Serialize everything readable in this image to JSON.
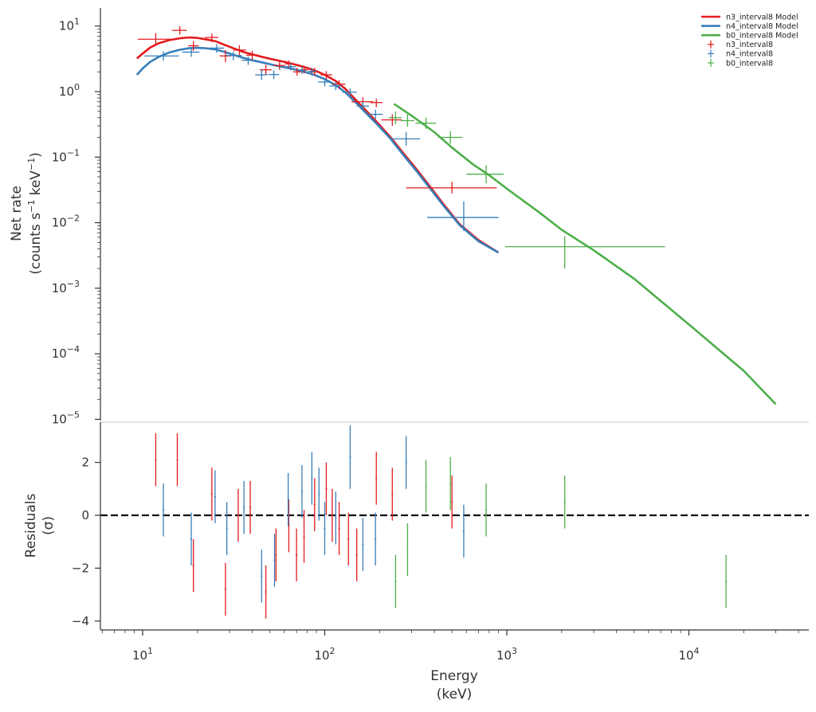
{
  "chart_data": [
    {
      "type": "line",
      "panel": "spectrum",
      "x_scale": "log",
      "y_scale": "log",
      "xlim": [
        6,
        45000
      ],
      "ylim": [
        1e-05,
        15
      ],
      "ylabel": [
        "Net rate",
        "(counts s$^{-1}$ keV$^{-1}$)"
      ],
      "ylabel_parts": {
        "line1": "Net rate",
        "line2_pre": "(counts s",
        "sup1": "−1",
        "line2_mid": " keV",
        "sup2": "−1",
        "line2_post": ")"
      },
      "y_ticks": [
        {
          "base": "10",
          "exp": "1",
          "value": 10
        },
        {
          "base": "10",
          "exp": "0",
          "value": 1
        },
        {
          "base": "10",
          "exp": "−1",
          "value": 0.1
        },
        {
          "base": "10",
          "exp": "−2",
          "value": 0.01
        },
        {
          "base": "10",
          "exp": "−3",
          "value": 0.001
        },
        {
          "base": "10",
          "exp": "−4",
          "value": 0.0001
        },
        {
          "base": "10",
          "exp": "−5",
          "value": 1e-05
        }
      ],
      "legend": {
        "placement": "top-right",
        "entries": [
          {
            "label": "n3_interval8 Model",
            "color": "#e41a1c",
            "kind": "line"
          },
          {
            "label": "n4_interval8 Model",
            "color": "#377eb8",
            "kind": "line"
          },
          {
            "label": "b0_interval8 Model",
            "color": "#4daf4a",
            "kind": "line"
          },
          {
            "label": "n3_interval8",
            "color": "#e41a1c",
            "kind": "cross"
          },
          {
            "label": "n4_interval8",
            "color": "#377eb8",
            "kind": "cross"
          },
          {
            "label": "b0_interval8",
            "color": "#4daf4a",
            "kind": "cross"
          }
        ]
      },
      "models": [
        {
          "name": "n3_interval8 Model",
          "color": "#e41a1c",
          "x": [
            9.3,
            10,
            11,
            12.3,
            14,
            16,
            18,
            20,
            22,
            25,
            28,
            32,
            36,
            40,
            45,
            52,
            60,
            70,
            80,
            90,
            100,
            115,
            130,
            150,
            170,
            200,
            230,
            270,
            320,
            380,
            450,
            550,
            700,
            900
          ],
          "y": [
            3.2,
            3.8,
            4.7,
            5.5,
            6.1,
            6.5,
            6.7,
            6.6,
            6.3,
            5.9,
            5.2,
            4.5,
            4.0,
            3.7,
            3.4,
            3.1,
            2.85,
            2.55,
            2.3,
            2.05,
            1.8,
            1.45,
            1.1,
            0.72,
            0.5,
            0.31,
            0.2,
            0.115,
            0.065,
            0.035,
            0.019,
            0.0095,
            0.0054,
            0.0035
          ]
        },
        {
          "name": "n4_interval8 Model",
          "color": "#377eb8",
          "x": [
            9.3,
            10,
            11,
            12.3,
            14,
            16,
            18,
            20,
            22,
            25,
            28,
            32,
            36,
            40,
            45,
            52,
            60,
            70,
            80,
            90,
            100,
            115,
            130,
            150,
            170,
            200,
            230,
            270,
            320,
            380,
            450,
            550,
            700,
            900
          ],
          "y": [
            1.8,
            2.25,
            2.85,
            3.4,
            3.95,
            4.35,
            4.6,
            4.65,
            4.6,
            4.4,
            4.05,
            3.6,
            3.25,
            3.0,
            2.8,
            2.55,
            2.35,
            2.15,
            1.95,
            1.75,
            1.55,
            1.25,
            0.97,
            0.66,
            0.46,
            0.29,
            0.19,
            0.108,
            0.061,
            0.033,
            0.018,
            0.0092,
            0.0052,
            0.0035
          ]
        },
        {
          "name": "b0_interval8 Model",
          "color": "#4daf4a",
          "x": [
            240,
            300,
            400,
            500,
            650,
            800,
            1000,
            1500,
            2000,
            3000,
            5000,
            10000,
            20000,
            30000
          ],
          "y": [
            0.65,
            0.43,
            0.24,
            0.14,
            0.078,
            0.053,
            0.033,
            0.0145,
            0.0078,
            0.0038,
            0.0014,
            0.00028,
            5.5e-05,
            1.7e-05
          ]
        }
      ],
      "series": [
        {
          "name": "n3_interval8",
          "color": "#e41a1c",
          "points": [
            {
              "x": 11.8,
              "y": 6.3,
              "xlo": 9.4,
              "xhi": 14.2,
              "ylo": 5.0,
              "yhi": 7.8
            },
            {
              "x": 16.0,
              "y": 8.6,
              "xlo": 14.5,
              "xhi": 17.5,
              "ylo": 7.4,
              "yhi": 9.9
            },
            {
              "x": 19.0,
              "y": 5.0,
              "xlo": 17.8,
              "xhi": 20.3,
              "ylo": 4.2,
              "yhi": 5.9
            },
            {
              "x": 24.0,
              "y": 6.7,
              "xlo": 22.0,
              "xhi": 26.0,
              "ylo": 5.7,
              "yhi": 7.7
            },
            {
              "x": 28.5,
              "y": 3.5,
              "xlo": 26.5,
              "xhi": 30.5,
              "ylo": 2.8,
              "yhi": 4.3
            },
            {
              "x": 34.0,
              "y": 4.3,
              "xlo": 31.5,
              "xhi": 37.0,
              "ylo": 3.6,
              "yhi": 5.1
            },
            {
              "x": 40.0,
              "y": 3.6,
              "xlo": 37.0,
              "xhi": 43.5,
              "ylo": 3.0,
              "yhi": 4.2
            },
            {
              "x": 47.5,
              "y": 2.15,
              "xlo": 44.0,
              "xhi": 51.0,
              "ylo": 1.8,
              "yhi": 2.55
            },
            {
              "x": 56.5,
              "y": 2.5,
              "xlo": 52.5,
              "xhi": 60.5,
              "ylo": 2.15,
              "yhi": 2.9
            },
            {
              "x": 63.5,
              "y": 2.65,
              "xlo": 60.5,
              "xhi": 67.0,
              "ylo": 2.3,
              "yhi": 3.0
            },
            {
              "x": 70.5,
              "y": 2.0,
              "xlo": 67.0,
              "xhi": 74.0,
              "ylo": 1.75,
              "yhi": 2.3
            },
            {
              "x": 77.0,
              "y": 2.15,
              "xlo": 74.0,
              "xhi": 81.0,
              "ylo": 1.9,
              "yhi": 2.45
            },
            {
              "x": 88.0,
              "y": 2.0,
              "xlo": 83.0,
              "xhi": 93.0,
              "ylo": 1.75,
              "yhi": 2.3
            },
            {
              "x": 102.0,
              "y": 1.8,
              "xlo": 95.0,
              "xhi": 110.0,
              "ylo": 1.55,
              "yhi": 2.05
            },
            {
              "x": 120.0,
              "y": 1.3,
              "xlo": 110.0,
              "xhi": 130.0,
              "ylo": 1.1,
              "yhi": 1.5
            },
            {
              "x": 162.0,
              "y": 0.7,
              "xlo": 140.0,
              "xhi": 185.0,
              "ylo": 0.6,
              "yhi": 0.82
            },
            {
              "x": 192.0,
              "y": 0.68,
              "xlo": 178.0,
              "xhi": 208.0,
              "ylo": 0.58,
              "yhi": 0.78
            },
            {
              "x": 235.0,
              "y": 0.37,
              "xlo": 205.0,
              "xhi": 265.0,
              "ylo": 0.3,
              "yhi": 0.45
            },
            {
              "x": 500.0,
              "y": 0.034,
              "xlo": 280.0,
              "xhi": 880.0,
              "ylo": 0.028,
              "yhi": 0.042
            }
          ]
        },
        {
          "name": "n4_interval8",
          "color": "#377eb8",
          "points": [
            {
              "x": 13.0,
              "y": 3.5,
              "xlo": 10.2,
              "xhi": 15.8,
              "ylo": 2.95,
              "yhi": 4.1
            },
            {
              "x": 18.5,
              "y": 4.0,
              "xlo": 16.5,
              "xhi": 20.5,
              "ylo": 3.4,
              "yhi": 4.7
            },
            {
              "x": 25.5,
              "y": 4.6,
              "xlo": 23.0,
              "xhi": 28.0,
              "ylo": 3.9,
              "yhi": 5.3
            },
            {
              "x": 31.5,
              "y": 3.55,
              "xlo": 28.5,
              "xhi": 35.0,
              "ylo": 3.0,
              "yhi": 4.1
            },
            {
              "x": 38.0,
              "y": 3.0,
              "xlo": 35.0,
              "xhi": 41.5,
              "ylo": 2.55,
              "yhi": 3.45
            },
            {
              "x": 45.0,
              "y": 1.8,
              "xlo": 41.5,
              "xhi": 48.5,
              "ylo": 1.5,
              "yhi": 2.15
            },
            {
              "x": 52.5,
              "y": 1.82,
              "xlo": 49.0,
              "xhi": 56.0,
              "ylo": 1.55,
              "yhi": 2.1
            },
            {
              "x": 65.0,
              "y": 2.4,
              "xlo": 61.0,
              "xhi": 69.5,
              "ylo": 2.1,
              "yhi": 2.7
            },
            {
              "x": 75.0,
              "y": 2.1,
              "xlo": 71.0,
              "xhi": 79.0,
              "ylo": 1.85,
              "yhi": 2.4
            },
            {
              "x": 85.0,
              "y": 2.05,
              "xlo": 81.0,
              "xhi": 90.0,
              "ylo": 1.8,
              "yhi": 2.3
            },
            {
              "x": 100.0,
              "y": 1.4,
              "xlo": 92.0,
              "xhi": 108.0,
              "ylo": 1.2,
              "yhi": 1.6
            },
            {
              "x": 115.0,
              "y": 1.22,
              "xlo": 106.0,
              "xhi": 124.0,
              "ylo": 1.05,
              "yhi": 1.4
            },
            {
              "x": 138.0,
              "y": 0.98,
              "xlo": 125.0,
              "xhi": 150.0,
              "ylo": 0.85,
              "yhi": 1.12
            },
            {
              "x": 162.0,
              "y": 0.6,
              "xlo": 150.0,
              "xhi": 175.0,
              "ylo": 0.52,
              "yhi": 0.7
            },
            {
              "x": 190.0,
              "y": 0.45,
              "xlo": 175.0,
              "xhi": 208.0,
              "ylo": 0.38,
              "yhi": 0.53
            },
            {
              "x": 280.0,
              "y": 0.19,
              "xlo": 232.0,
              "xhi": 335.0,
              "ylo": 0.15,
              "yhi": 0.24
            },
            {
              "x": 580.0,
              "y": 0.012,
              "xlo": 365.0,
              "xhi": 900.0,
              "ylo": 0.0075,
              "yhi": 0.021
            }
          ]
        },
        {
          "name": "b0_interval8",
          "color": "#4daf4a",
          "points": [
            {
              "x": 245.0,
              "y": 0.4,
              "xlo": 225.0,
              "xhi": 265.0,
              "ylo": 0.32,
              "yhi": 0.5
            },
            {
              "x": 285.0,
              "y": 0.36,
              "xlo": 262.0,
              "xhi": 310.0,
              "ylo": 0.29,
              "yhi": 0.45
            },
            {
              "x": 360.0,
              "y": 0.33,
              "xlo": 315.0,
              "xhi": 410.0,
              "ylo": 0.27,
              "yhi": 0.4
            },
            {
              "x": 490.0,
              "y": 0.2,
              "xlo": 420.0,
              "xhi": 570.0,
              "ylo": 0.16,
              "yhi": 0.25
            },
            {
              "x": 770.0,
              "y": 0.055,
              "xlo": 600.0,
              "xhi": 960.0,
              "ylo": 0.04,
              "yhi": 0.075
            },
            {
              "x": 2080.0,
              "y": 0.0043,
              "xlo": 980.0,
              "xhi": 7400.0,
              "ylo": 0.002,
              "yhi": 0.0062
            }
          ]
        }
      ]
    },
    {
      "type": "scatter",
      "panel": "residuals",
      "x_scale": "log",
      "xlim": [
        6,
        45000
      ],
      "ylim": [
        -4.4,
        3.6
      ],
      "xlabel": [
        "Energy",
        "(keV)"
      ],
      "ylabel": [
        "Residuals",
        "(σ)"
      ],
      "x_ticks": [
        {
          "base": "10",
          "exp": "1",
          "value": 10
        },
        {
          "base": "10",
          "exp": "2",
          "value": 100
        },
        {
          "base": "10",
          "exp": "3",
          "value": 1000
        },
        {
          "base": "10",
          "exp": "4",
          "value": 10000
        }
      ],
      "y_ticks": [
        {
          "label": "2",
          "value": 2
        },
        {
          "label": "0",
          "value": 0
        },
        {
          "label": "−2",
          "value": -2
        },
        {
          "label": "−4",
          "value": -4
        }
      ],
      "zero_line": {
        "value": 0,
        "style": "dashed",
        "color": "#111111"
      },
      "series": [
        {
          "name": "n3_interval8",
          "color": "#e41a1c",
          "points": [
            {
              "x": 11.8,
              "y": 2.1,
              "err": 1.0
            },
            {
              "x": 15.5,
              "y": 2.1,
              "err": 1.0
            },
            {
              "x": 19.0,
              "y": -1.9,
              "err": 1.0
            },
            {
              "x": 24.0,
              "y": 0.8,
              "err": 1.0
            },
            {
              "x": 28.5,
              "y": -2.8,
              "err": 1.0
            },
            {
              "x": 33.5,
              "y": 0.0,
              "err": 1.0
            },
            {
              "x": 39.0,
              "y": 0.3,
              "err": 1.0
            },
            {
              "x": 47.5,
              "y": -2.9,
              "err": 1.0
            },
            {
              "x": 54.0,
              "y": -1.5,
              "err": 1.0
            },
            {
              "x": 63.5,
              "y": -0.4,
              "err": 1.0
            },
            {
              "x": 70.0,
              "y": -1.5,
              "err": 1.0
            },
            {
              "x": 77.0,
              "y": -0.8,
              "err": 1.0
            },
            {
              "x": 88.0,
              "y": 0.4,
              "err": 1.0
            },
            {
              "x": 102.0,
              "y": 1.0,
              "err": 1.0
            },
            {
              "x": 110.0,
              "y": 0.0,
              "err": 1.0
            },
            {
              "x": 120.0,
              "y": -0.5,
              "err": 1.0
            },
            {
              "x": 135.0,
              "y": -0.9,
              "err": 1.0
            },
            {
              "x": 150.0,
              "y": -1.5,
              "err": 1.0
            },
            {
              "x": 192.0,
              "y": 1.4,
              "err": 1.0
            },
            {
              "x": 235.0,
              "y": 0.8,
              "err": 1.0
            },
            {
              "x": 500.0,
              "y": 0.5,
              "err": 1.0
            }
          ]
        },
        {
          "name": "n4_interval8",
          "color": "#377eb8",
          "points": [
            {
              "x": 13.0,
              "y": 0.2,
              "err": 1.0
            },
            {
              "x": 18.5,
              "y": -0.9,
              "err": 1.0
            },
            {
              "x": 25.0,
              "y": 0.7,
              "err": 1.0
            },
            {
              "x": 29.0,
              "y": -0.5,
              "err": 1.0
            },
            {
              "x": 36.0,
              "y": 0.3,
              "err": 1.0
            },
            {
              "x": 45.0,
              "y": -2.3,
              "err": 1.0
            },
            {
              "x": 53.0,
              "y": -1.7,
              "err": 1.0
            },
            {
              "x": 63.0,
              "y": 0.6,
              "err": 1.0
            },
            {
              "x": 75.0,
              "y": 0.9,
              "err": 1.0
            },
            {
              "x": 85.0,
              "y": 1.4,
              "err": 1.0
            },
            {
              "x": 93.0,
              "y": 0.8,
              "err": 1.0
            },
            {
              "x": 100.0,
              "y": -0.5,
              "err": 1.0
            },
            {
              "x": 115.0,
              "y": -0.1,
              "err": 1.0
            },
            {
              "x": 138.0,
              "y": 2.2,
              "err": 1.2
            },
            {
              "x": 162.0,
              "y": -1.1,
              "err": 1.0
            },
            {
              "x": 190.0,
              "y": -0.9,
              "err": 1.0
            },
            {
              "x": 280.0,
              "y": 2.0,
              "err": 1.0
            },
            {
              "x": 580.0,
              "y": -0.6,
              "err": 1.0
            }
          ]
        },
        {
          "name": "b0_interval8",
          "color": "#4daf4a",
          "points": [
            {
              "x": 245.0,
              "y": -2.5,
              "err": 1.0
            },
            {
              "x": 285.0,
              "y": -1.3,
              "err": 1.0
            },
            {
              "x": 360.0,
              "y": 1.1,
              "err": 1.0
            },
            {
              "x": 490.0,
              "y": 1.2,
              "err": 1.0
            },
            {
              "x": 770.0,
              "y": 0.2,
              "err": 1.0
            },
            {
              "x": 2080.0,
              "y": 0.5,
              "err": 1.0
            },
            {
              "x": 16000.0,
              "y": -2.5,
              "err": 1.0
            }
          ]
        }
      ]
    }
  ]
}
